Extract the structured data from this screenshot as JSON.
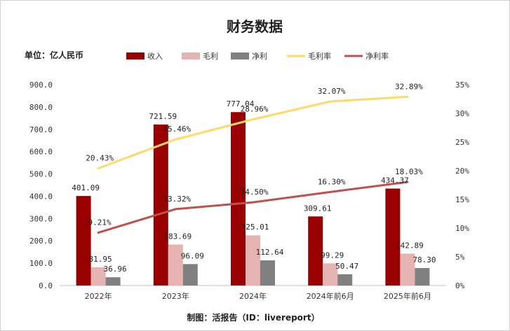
{
  "chart_data": {
    "type": "bar",
    "title": "财务数据",
    "unit_label": "单位：亿人民币",
    "footer": "制图：活报告（ID：livereport）",
    "categories": [
      "2022年",
      "2023年",
      "2024年",
      "2024年前6月",
      "2025年前6月"
    ],
    "series": [
      {
        "name": "收入",
        "kind": "bar",
        "axis": "left",
        "color": "#990000",
        "values": [
          401.09,
          721.59,
          777.04,
          309.61,
          434.37
        ]
      },
      {
        "name": "毛利",
        "kind": "bar",
        "axis": "left",
        "color": "#e6b3b3",
        "values": [
          81.95,
          183.69,
          225.01,
          99.29,
          142.89
        ]
      },
      {
        "name": "净利",
        "kind": "bar",
        "axis": "left",
        "color": "#808080",
        "values": [
          36.96,
          96.09,
          112.64,
          50.47,
          78.3
        ]
      },
      {
        "name": "毛利率",
        "kind": "line",
        "axis": "right",
        "color": "#ffd966",
        "values": [
          20.43,
          25.46,
          28.96,
          32.07,
          32.89
        ]
      },
      {
        "name": "净利率",
        "kind": "line",
        "axis": "right",
        "color": "#c0504d",
        "values": [
          9.21,
          13.32,
          14.5,
          16.3,
          18.03
        ]
      }
    ],
    "y_left": {
      "min": 0,
      "max": 900,
      "step": 100,
      "tick_labels": [
        "0.0",
        "100.0",
        "200.0",
        "300.0",
        "400.0",
        "500.0",
        "600.0",
        "700.0",
        "800.0",
        "900.0"
      ]
    },
    "y_right": {
      "min": 0,
      "max": 35,
      "step": 5,
      "tick_labels": [
        "0%",
        "5%",
        "10%",
        "15%",
        "20%",
        "25%",
        "30%",
        "35%"
      ]
    },
    "data_labels": {
      "收入": [
        "401.09",
        "721.59",
        "777.04",
        "309.61",
        "434.37"
      ],
      "毛利": [
        "81.95",
        "183.69",
        "225.01",
        "99.29",
        "142.89"
      ],
      "净利": [
        "36.96",
        "96.09",
        "112.64",
        "50.47",
        "78.30"
      ],
      "毛利率": [
        "20.43%",
        "25.46%",
        "28.96%",
        "32.07%",
        "32.89%"
      ],
      "净利率": [
        "9.21%",
        "13.32%",
        "14.50%",
        "16.30%",
        "18.03%"
      ]
    },
    "legend_position": "top",
    "grid": false
  }
}
